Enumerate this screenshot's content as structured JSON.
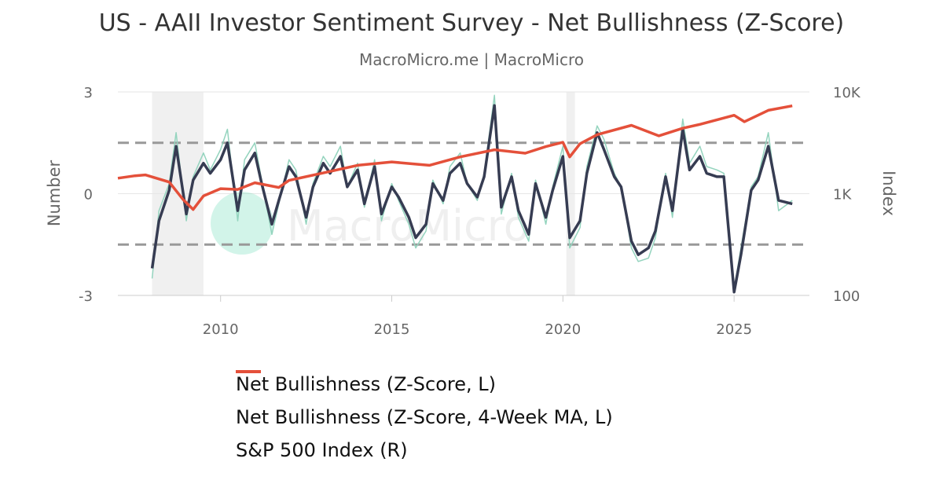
{
  "header": {
    "title": "US - AAII Investor Sentiment Survey - Net Bullishness (Z-Score)",
    "subtitle": "MacroMicro.me | MacroMicro"
  },
  "watermark": "MacroMicro",
  "colors": {
    "zscore": "#94d4be",
    "ma": "#363c52",
    "spx": "#e4503a",
    "recession": "#f0f0f0",
    "grid": "#e6e6e6",
    "threshold": "#999999"
  },
  "chart_data": {
    "type": "line",
    "title": "US - AAII Investor Sentiment Survey - Net Bullishness (Z-Score)",
    "subtitle": "MacroMicro.me | MacroMicro",
    "xlim": [
      2007,
      2027.2
    ],
    "x_ticks": [
      "2010",
      "2015",
      "2020",
      "2025"
    ],
    "y_left": {
      "label": "Number",
      "lim": [
        -3,
        3
      ],
      "ticks": [
        "3",
        "0",
        "-3"
      ],
      "threshold_lines": [
        1.5,
        -1.5
      ]
    },
    "y_right": {
      "label": "Index",
      "scale": "log",
      "lim": [
        100,
        10000
      ],
      "ticks": [
        "10K",
        "1K",
        "100"
      ]
    },
    "shaded_periods": [
      [
        2008.0,
        2009.5
      ],
      [
        2020.1,
        2020.35
      ]
    ],
    "grid": "horizontal",
    "legend_position": "bottom",
    "series": [
      {
        "name": "Net Bullishness (Z-Score, L)",
        "axis": "left",
        "x": [
          2008.0,
          2008.2,
          2008.5,
          2008.7,
          2009.0,
          2009.2,
          2009.5,
          2009.7,
          2010.0,
          2010.2,
          2010.5,
          2010.7,
          2011.0,
          2011.2,
          2011.5,
          2011.7,
          2012.0,
          2012.2,
          2012.5,
          2012.7,
          2013.0,
          2013.2,
          2013.5,
          2013.7,
          2014.0,
          2014.2,
          2014.5,
          2014.7,
          2015.0,
          2015.2,
          2015.5,
          2015.7,
          2016.0,
          2016.2,
          2016.5,
          2016.7,
          2017.0,
          2017.2,
          2017.5,
          2017.7,
          2018.0,
          2018.2,
          2018.5,
          2018.7,
          2019.0,
          2019.2,
          2019.5,
          2019.7,
          2020.0,
          2020.2,
          2020.5,
          2020.7,
          2021.0,
          2021.2,
          2021.5,
          2021.7,
          2022.0,
          2022.2,
          2022.5,
          2022.7,
          2023.0,
          2023.2,
          2023.5,
          2023.7,
          2024.0,
          2024.2,
          2024.5,
          2024.7,
          2025.0,
          2025.2,
          2025.5,
          2025.7,
          2026.0,
          2026.3,
          2026.7
        ],
        "y": [
          -2.5,
          -0.5,
          0.3,
          1.8,
          -0.8,
          0.5,
          1.2,
          0.7,
          1.3,
          1.9,
          -0.8,
          1.0,
          1.5,
          0.4,
          -1.2,
          -0.3,
          1.0,
          0.7,
          -0.9,
          0.3,
          1.1,
          0.8,
          1.4,
          0.2,
          0.9,
          -0.4,
          1.0,
          -0.8,
          0.3,
          -0.2,
          -0.9,
          -1.6,
          -1.1,
          0.4,
          -0.3,
          0.8,
          1.2,
          0.3,
          -0.2,
          0.6,
          2.9,
          -0.6,
          0.6,
          -0.7,
          -1.4,
          0.4,
          -0.9,
          0.2,
          1.4,
          -1.6,
          -1.0,
          0.8,
          2.0,
          1.6,
          0.6,
          0.2,
          -1.6,
          -2.0,
          -1.9,
          -1.3,
          0.6,
          -0.7,
          2.2,
          0.9,
          1.4,
          0.8,
          0.7,
          0.6,
          -2.8,
          -1.6,
          0.2,
          0.5,
          1.8,
          -0.5,
          -0.2
        ]
      },
      {
        "name": "Net Bullishness (Z-Score, 4-Week MA, L)",
        "axis": "left",
        "x": [
          2008.0,
          2008.2,
          2008.5,
          2008.7,
          2009.0,
          2009.2,
          2009.5,
          2009.7,
          2010.0,
          2010.2,
          2010.5,
          2010.7,
          2011.0,
          2011.2,
          2011.5,
          2011.7,
          2012.0,
          2012.2,
          2012.5,
          2012.7,
          2013.0,
          2013.2,
          2013.5,
          2013.7,
          2014.0,
          2014.2,
          2014.5,
          2014.7,
          2015.0,
          2015.2,
          2015.5,
          2015.7,
          2016.0,
          2016.2,
          2016.5,
          2016.7,
          2017.0,
          2017.2,
          2017.5,
          2017.7,
          2018.0,
          2018.2,
          2018.5,
          2018.7,
          2019.0,
          2019.2,
          2019.5,
          2019.7,
          2020.0,
          2020.2,
          2020.5,
          2020.7,
          2021.0,
          2021.2,
          2021.5,
          2021.7,
          2022.0,
          2022.2,
          2022.5,
          2022.7,
          2023.0,
          2023.2,
          2023.5,
          2023.7,
          2024.0,
          2024.2,
          2024.5,
          2024.7,
          2025.0,
          2025.2,
          2025.5,
          2025.7,
          2026.0,
          2026.3,
          2026.7
        ],
        "y": [
          -2.2,
          -0.8,
          0.1,
          1.4,
          -0.6,
          0.4,
          0.9,
          0.6,
          1.0,
          1.5,
          -0.5,
          0.7,
          1.2,
          0.3,
          -0.9,
          -0.2,
          0.8,
          0.5,
          -0.7,
          0.2,
          0.9,
          0.6,
          1.1,
          0.2,
          0.7,
          -0.3,
          0.8,
          -0.6,
          0.2,
          -0.1,
          -0.7,
          -1.3,
          -0.9,
          0.3,
          -0.2,
          0.6,
          0.9,
          0.3,
          -0.1,
          0.5,
          2.6,
          -0.4,
          0.5,
          -0.5,
          -1.2,
          0.3,
          -0.7,
          0.1,
          1.1,
          -1.3,
          -0.8,
          0.6,
          1.8,
          1.3,
          0.5,
          0.2,
          -1.4,
          -1.8,
          -1.6,
          -1.1,
          0.5,
          -0.5,
          1.9,
          0.7,
          1.1,
          0.6,
          0.5,
          0.5,
          -2.9,
          -1.8,
          0.1,
          0.4,
          1.4,
          -0.2,
          -0.3
        ]
      },
      {
        "name": "S&P 500 Index (R)",
        "axis": "right",
        "x": [
          2007.0,
          2007.5,
          2007.8,
          2008.5,
          2008.9,
          2009.2,
          2009.5,
          2010.0,
          2010.5,
          2011.0,
          2011.7,
          2012.0,
          2013.0,
          2014.0,
          2015.0,
          2015.7,
          2016.1,
          2017.0,
          2018.0,
          2018.9,
          2019.5,
          2020.0,
          2020.2,
          2020.5,
          2021.0,
          2022.0,
          2022.8,
          2023.5,
          2024.0,
          2025.0,
          2025.3,
          2026.0,
          2026.7
        ],
        "y": [
          1420,
          1500,
          1530,
          1300,
          880,
          700,
          950,
          1120,
          1100,
          1280,
          1150,
          1350,
          1600,
          1900,
          2050,
          1950,
          1900,
          2300,
          2700,
          2500,
          2900,
          3200,
          2300,
          3100,
          3800,
          4700,
          3700,
          4400,
          4800,
          5900,
          5100,
          6600,
          7300
        ]
      }
    ]
  }
}
